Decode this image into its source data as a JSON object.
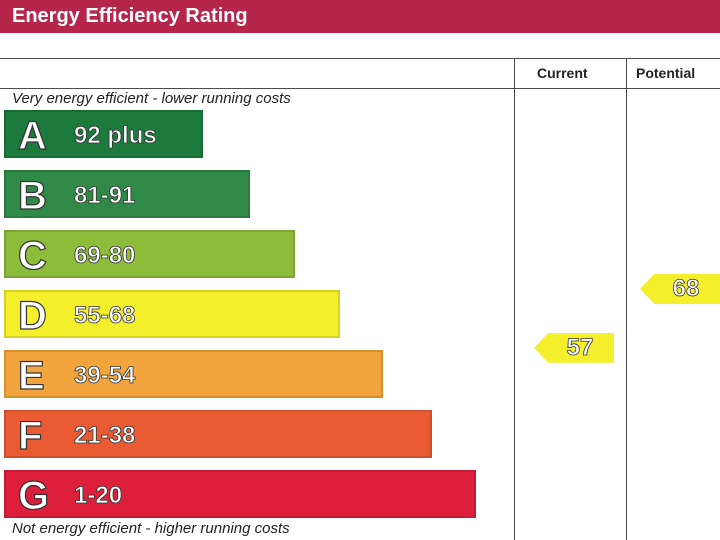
{
  "title": "Energy Efficiency Rating",
  "columns": {
    "current": "Current",
    "potential": "Potential"
  },
  "top_caption": "Very energy efficient - lower running costs",
  "bottom_caption": "Not energy efficient - higher running costs",
  "chart_data": {
    "type": "bar",
    "title": "Energy Efficiency Rating",
    "categories": [
      "A",
      "B",
      "C",
      "D",
      "E",
      "F",
      "G"
    ],
    "ranges": [
      "92 plus",
      "81-91",
      "69-80",
      "55-68",
      "39-54",
      "21-38",
      "1-20"
    ],
    "colors": [
      "#1b7a3c",
      "#2f8a47",
      "#8dbb3a",
      "#f5ee2a",
      "#f2a53c",
      "#ea5a33",
      "#de1f3c"
    ],
    "current": {
      "label": "Current",
      "value": 57,
      "band": "D"
    },
    "potential": {
      "label": "Potential",
      "value": 68,
      "band": "D"
    },
    "arrow_color": "#f5ee2a"
  }
}
